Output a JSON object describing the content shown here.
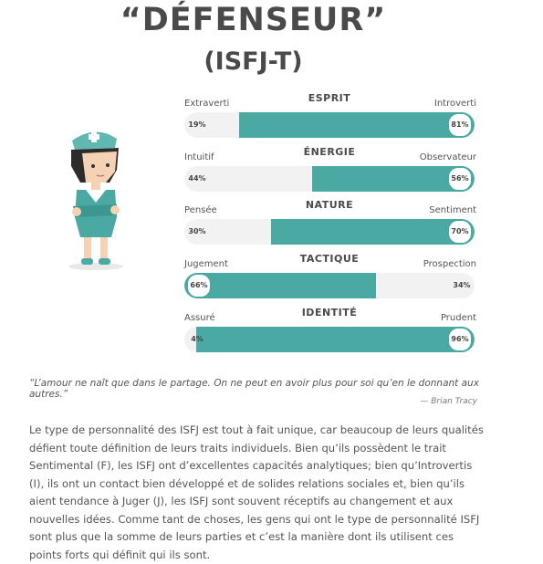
{
  "title_line1": "“DÉFENSEUR”",
  "title_line2": "(ISFJ-T)",
  "traits": [
    {
      "heading": "ESPRIT",
      "left": "Extraverti",
      "right": "Introverti",
      "left_pct": "19%",
      "right_pct": "81%",
      "fill_side": "right",
      "fill_fraction": 0.81
    },
    {
      "heading": "ÉNERGIE",
      "left": "Intuitif",
      "right": "Observateur",
      "left_pct": "44%",
      "right_pct": "56%",
      "fill_side": "right",
      "fill_fraction": 0.56
    },
    {
      "heading": "NATURE",
      "left": "Pensée",
      "right": "Sentiment",
      "left_pct": "30%",
      "right_pct": "70%",
      "fill_side": "right",
      "fill_fraction": 0.7
    },
    {
      "heading": "TACTIQUE",
      "left": "Jugement",
      "right": "Prospection",
      "left_pct": "66%",
      "right_pct": "34%",
      "fill_side": "left",
      "fill_fraction": 0.66
    },
    {
      "heading": "IDENTITÉ",
      "left": "Assuré",
      "right": "Prudent",
      "left_pct": "4%",
      "right_pct": "96%",
      "fill_side": "right",
      "fill_fraction": 0.96
    }
  ],
  "accent_color": "#4aa9a3",
  "quote": "“L’amour ne naît que dans le partage. On ne peut en avoir plus pour soi qu’en le donnant aux autres.”",
  "author": "— Brian Tracy",
  "paragraph": "Le type de personnalité des ISFJ est tout à fait unique, car beaucoup de leurs qualités défient toute définition de leurs traits individuels. Bien qu’ils possèdent le trait Sentimental (F), les ISFJ ont d’excellentes capacités analytiques; bien qu’Introvertis (I), ils ont un contact bien développé et de solides relations sociales et, bien qu’ils aient tendance à Juger (J), les ISFJ sont souvent réceptifs au changement et aux nouvelles idées. Comme tant de choses, les gens qui ont le type de personnalité ISFJ sont plus que la somme de leurs parties et c’est la manière dont ils utilisent ces points forts qui définit qui ils sont.",
  "figure_icon": "nurse-character-illustration"
}
